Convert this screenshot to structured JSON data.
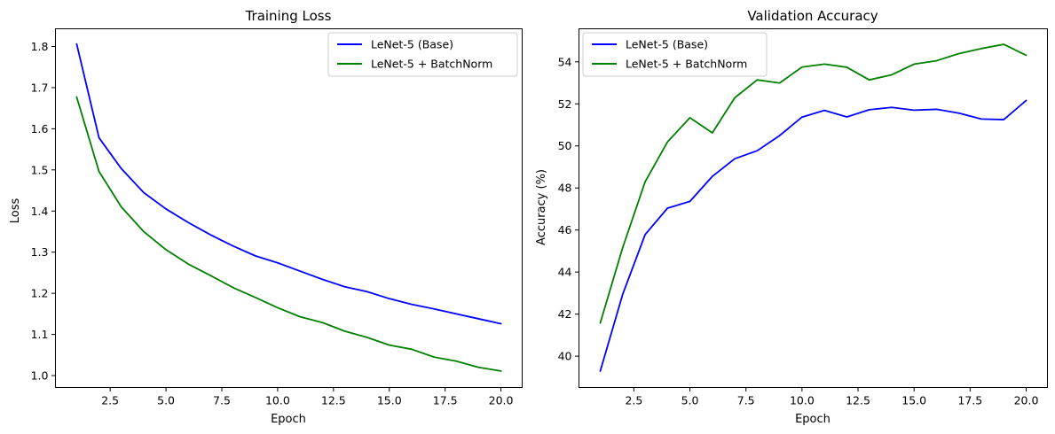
{
  "chart_data": [
    {
      "type": "line",
      "title": "Training Loss",
      "xlabel": "Epoch",
      "ylabel": "Loss",
      "xlim": [
        0.05,
        20.95
      ],
      "ylim": [
        0.971,
        1.843
      ],
      "xticks": [
        2.5,
        5.0,
        7.5,
        10.0,
        12.5,
        15.0,
        17.5,
        20.0
      ],
      "xtick_labels": [
        "2.5",
        "5.0",
        "7.5",
        "10.0",
        "12.5",
        "15.0",
        "17.5",
        "20.0"
      ],
      "yticks": [
        1.0,
        1.1,
        1.2,
        1.3,
        1.4,
        1.5,
        1.6,
        1.7,
        1.8
      ],
      "ytick_labels": [
        "1.0",
        "1.1",
        "1.2",
        "1.3",
        "1.4",
        "1.5",
        "1.6",
        "1.7",
        "1.8"
      ],
      "grid": false,
      "legend_position": "upper right",
      "x": [
        1,
        2,
        3,
        4,
        5,
        6,
        7,
        8,
        9,
        10,
        11,
        12,
        13,
        14,
        15,
        16,
        17,
        18,
        19,
        20
      ],
      "series": [
        {
          "name": "LeNet-5 (Base)",
          "color": "#0000ff",
          "values": [
            1.806,
            1.578,
            1.503,
            1.445,
            1.405,
            1.372,
            1.342,
            1.315,
            1.291,
            1.274,
            1.254,
            1.234,
            1.216,
            1.204,
            1.187,
            1.173,
            1.162,
            1.15,
            1.138,
            1.126
          ]
        },
        {
          "name": "LeNet-5 + BatchNorm",
          "color": "#008000",
          "values": [
            1.677,
            1.496,
            1.41,
            1.35,
            1.306,
            1.271,
            1.243,
            1.214,
            1.19,
            1.165,
            1.143,
            1.129,
            1.108,
            1.093,
            1.074,
            1.064,
            1.045,
            1.035,
            1.02,
            1.011
          ]
        }
      ]
    },
    {
      "type": "line",
      "title": "Validation Accuracy",
      "xlabel": "Epoch",
      "ylabel": "Accuracy (%)",
      "xlim": [
        0.05,
        20.95
      ],
      "ylim": [
        38.51,
        55.57
      ],
      "xticks": [
        2.5,
        5.0,
        7.5,
        10.0,
        12.5,
        15.0,
        17.5,
        20.0
      ],
      "xtick_labels": [
        "2.5",
        "5.0",
        "7.5",
        "10.0",
        "12.5",
        "15.0",
        "17.5",
        "20.0"
      ],
      "yticks": [
        40,
        42,
        44,
        46,
        48,
        50,
        52,
        54
      ],
      "ytick_labels": [
        "40",
        "42",
        "44",
        "46",
        "48",
        "50",
        "52",
        "54"
      ],
      "grid": false,
      "legend_position": "upper left",
      "x": [
        1,
        2,
        3,
        4,
        5,
        6,
        7,
        8,
        9,
        10,
        11,
        12,
        13,
        14,
        15,
        16,
        17,
        18,
        19,
        20
      ],
      "series": [
        {
          "name": "LeNet-5 (Base)",
          "color": "#0000ff",
          "values": [
            39.29,
            42.94,
            45.78,
            47.04,
            47.36,
            48.55,
            49.39,
            49.77,
            50.49,
            51.37,
            51.69,
            51.38,
            51.72,
            51.83,
            51.7,
            51.74,
            51.56,
            51.28,
            51.25,
            52.16
          ]
        },
        {
          "name": "LeNet-5 + BatchNorm",
          "color": "#008000",
          "values": [
            41.58,
            45.16,
            48.29,
            50.19,
            51.34,
            50.62,
            52.29,
            53.14,
            52.99,
            53.75,
            53.89,
            53.74,
            53.14,
            53.38,
            53.89,
            54.05,
            54.39,
            54.63,
            54.83,
            54.31
          ]
        }
      ]
    }
  ]
}
